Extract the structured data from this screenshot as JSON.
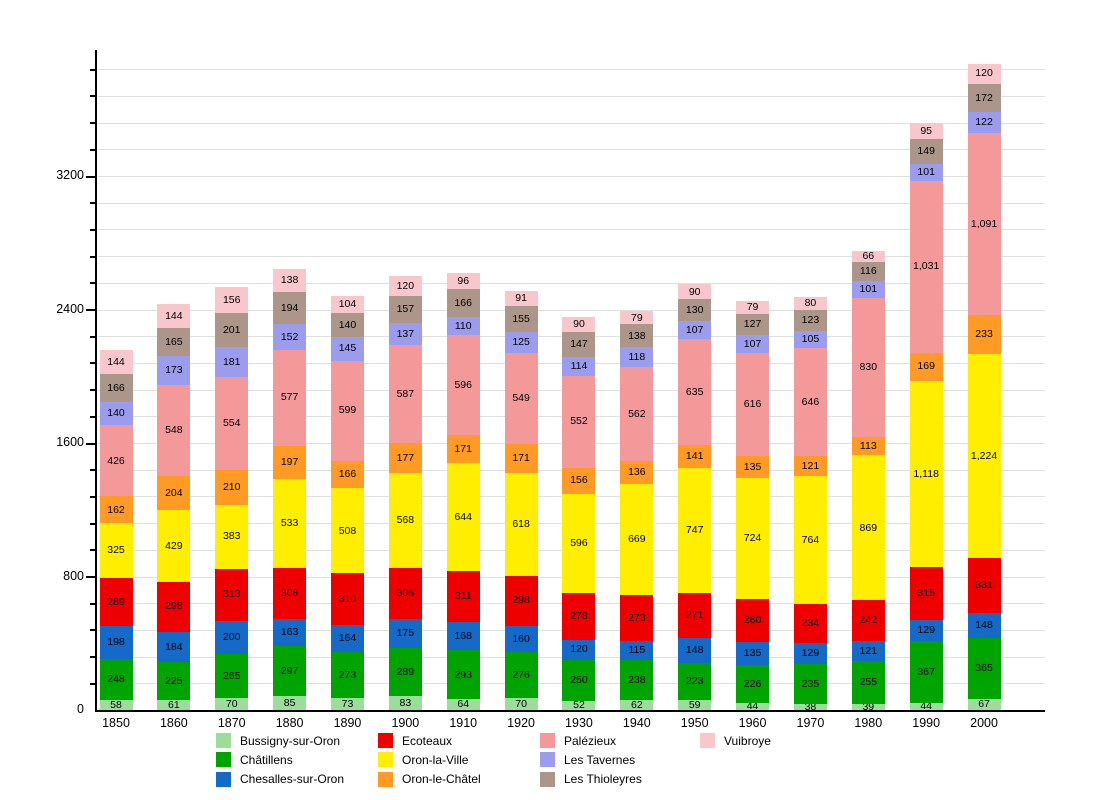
{
  "chart_data": {
    "type": "bar",
    "stacked": true,
    "title": "",
    "xlabel": "",
    "ylabel": "",
    "grid": true,
    "legend_position": "bottom",
    "categories": [
      "1850",
      "1860",
      "1870",
      "1880",
      "1890",
      "1900",
      "1910",
      "1920",
      "1930",
      "1940",
      "1950",
      "1960",
      "1970",
      "1980",
      "1990",
      "2000"
    ],
    "series": [
      {
        "name": "Bussigny-sur-Oron",
        "color": "#9cdd9c",
        "values": [
          58,
          61,
          70,
          85,
          73,
          83,
          64,
          70,
          52,
          62,
          59,
          44,
          38,
          39,
          44,
          67
        ]
      },
      {
        "name": "Châtillens",
        "color": "#00a400",
        "values": [
          248,
          225,
          265,
          297,
          273,
          289,
          293,
          276,
          250,
          238,
          223,
          226,
          235,
          255,
          367,
          365
        ]
      },
      {
        "name": "Chesalles-sur-Oron",
        "color": "#1569c7",
        "values": [
          198,
          184,
          200,
          163,
          164,
          175,
          168,
          160,
          120,
          115,
          148,
          135,
          129,
          121,
          129,
          148
        ]
      },
      {
        "name": "Ecoteaux",
        "color": "#ee0000",
        "values": [
          289,
          298,
          313,
          308,
          310,
          306,
          311,
          298,
          278,
          273,
          271,
          260,
          234,
          242,
          315,
          331
        ]
      },
      {
        "name": "Oron-la-Ville",
        "color": "#ffee00",
        "values": [
          325,
          429,
          383,
          533,
          508,
          568,
          644,
          618,
          596,
          669,
          747,
          724,
          764,
          869,
          1118,
          1224
        ]
      },
      {
        "name": "Oron-le-Châtel",
        "color": "#ff9b25",
        "values": [
          162,
          204,
          210,
          197,
          166,
          177,
          171,
          171,
          156,
          136,
          141,
          135,
          121,
          113,
          169,
          233
        ]
      },
      {
        "name": "Palézieux",
        "color": "#f49999",
        "values": [
          426,
          548,
          554,
          577,
          599,
          587,
          596,
          549,
          552,
          562,
          635,
          616,
          646,
          830,
          1031,
          1091
        ]
      },
      {
        "name": "Les Tavernes",
        "color": "#9c9cee",
        "values": [
          140,
          173,
          181,
          152,
          145,
          137,
          110,
          125,
          114,
          118,
          107,
          107,
          105,
          101,
          101,
          122
        ]
      },
      {
        "name": "Les Thioleyres",
        "color": "#ab9689",
        "values": [
          166,
          165,
          201,
          194,
          140,
          157,
          166,
          155,
          147,
          138,
          130,
          127,
          123,
          116,
          149,
          172
        ]
      },
      {
        "name": "Vuibroye",
        "color": "#f8c7cb",
        "values": [
          144,
          144,
          156,
          138,
          104,
          120,
          96,
          91,
          90,
          79,
          90,
          79,
          80,
          66,
          95,
          120
        ]
      }
    ],
    "y_axis": {
      "tick_values": [
        0,
        800,
        1600,
        2400,
        3200
      ],
      "tick_labels": [
        "0",
        "800",
        "1600",
        "2400",
        "3200"
      ],
      "minor_step": 160,
      "ylim": [
        0,
        3955
      ]
    }
  }
}
